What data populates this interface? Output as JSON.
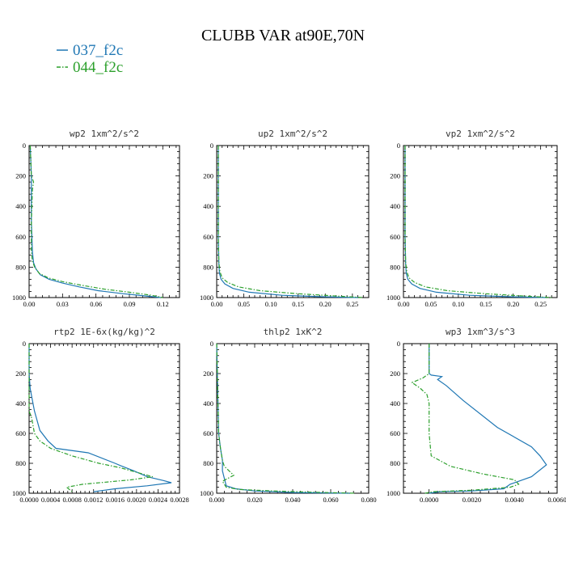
{
  "figure": {
    "title": "CLUBB VAR at90E,70N",
    "legend": [
      {
        "label": "037_f2c",
        "color": "#1f77b4",
        "dash": "solid"
      },
      {
        "label": "044_f2c",
        "color": "#2ca02c",
        "dash": "dashdot"
      }
    ]
  },
  "chart_data": [
    {
      "type": "line",
      "title": "wp2  1xm^2/s^2",
      "xlim": [
        0,
        0.135
      ],
      "xticks": [
        0.0,
        0.03,
        0.06,
        0.09,
        0.12
      ],
      "xticklabels": [
        "0.00",
        "0.03",
        "0.06",
        "0.09",
        "0.12"
      ],
      "ylim": [
        1000,
        0
      ],
      "yticks": [
        0,
        200,
        400,
        600,
        800,
        1000
      ],
      "series": [
        {
          "name": "037_f2c",
          "x": [
            0.001,
            0.002,
            0.002,
            0.002,
            0.002,
            0.003,
            0.004,
            0.006,
            0.01,
            0.018,
            0.03,
            0.045,
            0.062,
            0.085,
            0.105,
            0.118
          ],
          "y": [
            0,
            200,
            250,
            300,
            500,
            700,
            770,
            810,
            850,
            880,
            905,
            930,
            955,
            975,
            990,
            1000
          ]
        },
        {
          "name": "044_f2c",
          "x": [
            0.001,
            0.002,
            0.004,
            0.003,
            0.002,
            0.002,
            0.003,
            0.005,
            0.009,
            0.017,
            0.03,
            0.048,
            0.068,
            0.09,
            0.11,
            0.12
          ],
          "y": [
            0,
            200,
            240,
            290,
            500,
            700,
            760,
            800,
            840,
            870,
            895,
            920,
            945,
            965,
            985,
            1000
          ]
        }
      ]
    },
    {
      "type": "line",
      "title": "up2  1xm^2/s^2",
      "xlim": [
        0,
        0.28
      ],
      "xticks": [
        0.0,
        0.05,
        0.1,
        0.15,
        0.2,
        0.25
      ],
      "xticklabels": [
        "0.00",
        "0.05",
        "0.10",
        "0.15",
        "0.20",
        "0.25"
      ],
      "ylim": [
        1000,
        0
      ],
      "yticks": [
        0,
        200,
        400,
        600,
        800,
        1000
      ],
      "series": [
        {
          "name": "037_f2c",
          "x": [
            0.003,
            0.003,
            0.003,
            0.004,
            0.005,
            0.008,
            0.015,
            0.03,
            0.06,
            0.12,
            0.2,
            0.26
          ],
          "y": [
            0,
            240,
            600,
            780,
            840,
            880,
            910,
            940,
            965,
            985,
            995,
            1000
          ]
        },
        {
          "name": "044_f2c",
          "x": [
            0.003,
            0.003,
            0.003,
            0.004,
            0.006,
            0.01,
            0.02,
            0.04,
            0.08,
            0.15,
            0.22,
            0.27
          ],
          "y": [
            0,
            240,
            600,
            770,
            830,
            870,
            900,
            930,
            955,
            975,
            990,
            1000
          ]
        }
      ]
    },
    {
      "type": "line",
      "title": "vp2  1xm^2/s^2",
      "xlim": [
        0,
        0.28
      ],
      "xticks": [
        0.0,
        0.05,
        0.1,
        0.15,
        0.2,
        0.25
      ],
      "xticklabels": [
        "0.00",
        "0.05",
        "0.10",
        "0.15",
        "0.20",
        "0.25"
      ],
      "ylim": [
        1000,
        0
      ],
      "yticks": [
        0,
        200,
        400,
        600,
        800,
        1000
      ],
      "series": [
        {
          "name": "037_f2c",
          "x": [
            0.003,
            0.003,
            0.003,
            0.004,
            0.005,
            0.008,
            0.015,
            0.03,
            0.06,
            0.12,
            0.2,
            0.26
          ],
          "y": [
            0,
            240,
            600,
            780,
            840,
            880,
            910,
            940,
            965,
            985,
            995,
            1000
          ]
        },
        {
          "name": "044_f2c",
          "x": [
            0.003,
            0.003,
            0.003,
            0.004,
            0.006,
            0.01,
            0.02,
            0.04,
            0.08,
            0.15,
            0.22,
            0.27
          ],
          "y": [
            0,
            240,
            600,
            770,
            830,
            870,
            900,
            930,
            955,
            975,
            990,
            1000
          ]
        }
      ]
    },
    {
      "type": "line",
      "title": "rtp2  1E-6x(kg/kg)^2",
      "xlim": [
        0,
        0.0028
      ],
      "xticks": [
        0.0,
        0.0004,
        0.0008,
        0.0012,
        0.0016,
        0.002,
        0.0024,
        0.0028
      ],
      "xticklabels": [
        "0.0000",
        "0.0004",
        "0.0008",
        "0.0012",
        "0.0016",
        "0.0020",
        "0.0024",
        "0.0028"
      ],
      "ylim": [
        1000,
        0
      ],
      "yticks": [
        0,
        200,
        400,
        600,
        800,
        1000
      ],
      "series": [
        {
          "name": "037_f2c",
          "x": [
            0.0,
            0.0,
            2e-05,
            0.0001,
            0.0002,
            0.00035,
            0.0005,
            0.0011,
            0.0016,
            0.0017,
            0.00195,
            0.0022,
            0.0025,
            0.00265,
            0.0022,
            0.0016,
            0.0012
          ],
          "y": [
            0,
            200,
            300,
            450,
            580,
            650,
            700,
            730,
            800,
            815,
            850,
            890,
            915,
            930,
            950,
            970,
            990
          ]
        },
        {
          "name": "044_f2c",
          "x": [
            0.0,
            0.0,
            0.0,
            5e-05,
            0.0001,
            0.0002,
            0.0004,
            0.0008,
            0.0013,
            0.0017,
            0.002,
            0.0023,
            0.0019,
            0.001,
            0.0007,
            0.0008
          ],
          "y": [
            0,
            300,
            450,
            500,
            600,
            650,
            700,
            750,
            800,
            830,
            860,
            890,
            910,
            940,
            960,
            990
          ]
        }
      ]
    },
    {
      "type": "line",
      "title": "thlp2  1xK^2",
      "xlim": [
        0,
        0.08
      ],
      "xticks": [
        0.0,
        0.02,
        0.04,
        0.06,
        0.08
      ],
      "xticklabels": [
        "0.000",
        "0.020",
        "0.040",
        "0.060",
        "0.080"
      ],
      "ylim": [
        1000,
        0
      ],
      "yticks": [
        0,
        200,
        400,
        600,
        800,
        1000
      ],
      "series": [
        {
          "name": "037_f2c",
          "x": [
            0.0,
            0.0005,
            0.001,
            0.002,
            0.003,
            0.003,
            0.004,
            0.005,
            0.01,
            0.02,
            0.04,
            0.07
          ],
          "y": [
            0,
            300,
            600,
            700,
            780,
            850,
            900,
            950,
            970,
            985,
            995,
            1000
          ]
        },
        {
          "name": "044_f2c",
          "x": [
            0.0,
            0.0005,
            0.001,
            0.002,
            0.003,
            0.004,
            0.009,
            0.003,
            0.005,
            0.012,
            0.03,
            0.05,
            0.073
          ],
          "y": [
            0,
            300,
            600,
            700,
            780,
            820,
            880,
            920,
            960,
            975,
            985,
            993,
            1000
          ]
        }
      ]
    },
    {
      "type": "line",
      "title": "wp3  1xm^3/s^3",
      "xlim": [
        -0.0012,
        0.006
      ],
      "xticks": [
        0.0,
        0.002,
        0.004,
        0.006
      ],
      "xticklabels": [
        "0.0000",
        "0.0020",
        "0.0040",
        "0.0060"
      ],
      "ylim": [
        1000,
        0
      ],
      "yticks": [
        0,
        200,
        400,
        600,
        800,
        1000
      ],
      "series": [
        {
          "name": "037_f2c",
          "x": [
            0.0,
            0.0,
            0.0001,
            0.0006,
            0.0004,
            0.0008,
            0.0016,
            0.0032,
            0.0048,
            0.0052,
            0.0055,
            0.0048,
            0.0038,
            0.0035,
            0.002,
            0.0005,
            0.0
          ],
          "y": [
            0,
            200,
            210,
            220,
            240,
            280,
            380,
            560,
            690,
            750,
            810,
            890,
            940,
            970,
            985,
            990,
            1000
          ]
        },
        {
          "name": "044_f2c",
          "x": [
            0.0,
            0.0,
            -0.0003,
            -0.0008,
            -0.0004,
            -0.0001,
            0.0,
            0.0,
            0.0001,
            0.001,
            0.0025,
            0.004,
            0.0042,
            0.0038,
            0.002,
            0.0002,
            -0.0002
          ],
          "y": [
            0,
            200,
            230,
            260,
            300,
            340,
            400,
            600,
            750,
            820,
            870,
            910,
            940,
            960,
            980,
            990,
            1000
          ]
        }
      ]
    }
  ]
}
